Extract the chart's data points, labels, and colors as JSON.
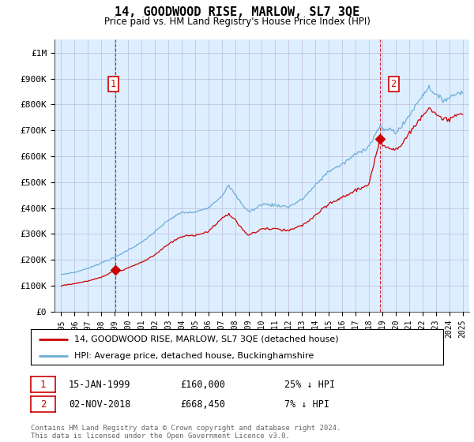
{
  "title": "14, GOODWOOD RISE, MARLOW, SL7 3QE",
  "subtitle": "Price paid vs. HM Land Registry's House Price Index (HPI)",
  "ylabel_vals": [
    0,
    100000,
    200000,
    300000,
    400000,
    500000,
    600000,
    700000,
    800000,
    900000,
    1000000
  ],
  "ylabel_labels": [
    "£0",
    "£100K",
    "£200K",
    "£300K",
    "£400K",
    "£500K",
    "£600K",
    "£700K",
    "£800K",
    "£900K",
    "£1M"
  ],
  "ylim": [
    0,
    1050000
  ],
  "hpi_color": "#6dadd6",
  "sale_color": "#cc0000",
  "vline_color": "#cc0000",
  "plot_bg_color": "#ddeeff",
  "marker1_date": 1999.04,
  "marker1_price": 160000,
  "marker1_vline": 1999.04,
  "marker2_date": 2018.84,
  "marker2_price": 668450,
  "marker2_vline": 2018.84,
  "xlim_start": 1994.5,
  "xlim_end": 2025.5,
  "xtick_years": [
    1995,
    1996,
    1997,
    1998,
    1999,
    2000,
    2001,
    2002,
    2003,
    2004,
    2005,
    2006,
    2007,
    2008,
    2009,
    2010,
    2011,
    2012,
    2013,
    2014,
    2015,
    2016,
    2017,
    2018,
    2019,
    2020,
    2021,
    2022,
    2023,
    2024,
    2025
  ],
  "legend_sale_label": "14, GOODWOOD RISE, MARLOW, SL7 3QE (detached house)",
  "legend_hpi_label": "HPI: Average price, detached house, Buckinghamshire",
  "annotation1_date": "15-JAN-1999",
  "annotation1_price": "£160,000",
  "annotation1_hpi": "25% ↓ HPI",
  "annotation2_date": "02-NOV-2018",
  "annotation2_price": "£668,450",
  "annotation2_hpi": "7% ↓ HPI",
  "footer": "Contains HM Land Registry data © Crown copyright and database right 2024.\nThis data is licensed under the Open Government Licence v3.0.",
  "background_color": "#ffffff",
  "grid_color": "#bbbbdd"
}
